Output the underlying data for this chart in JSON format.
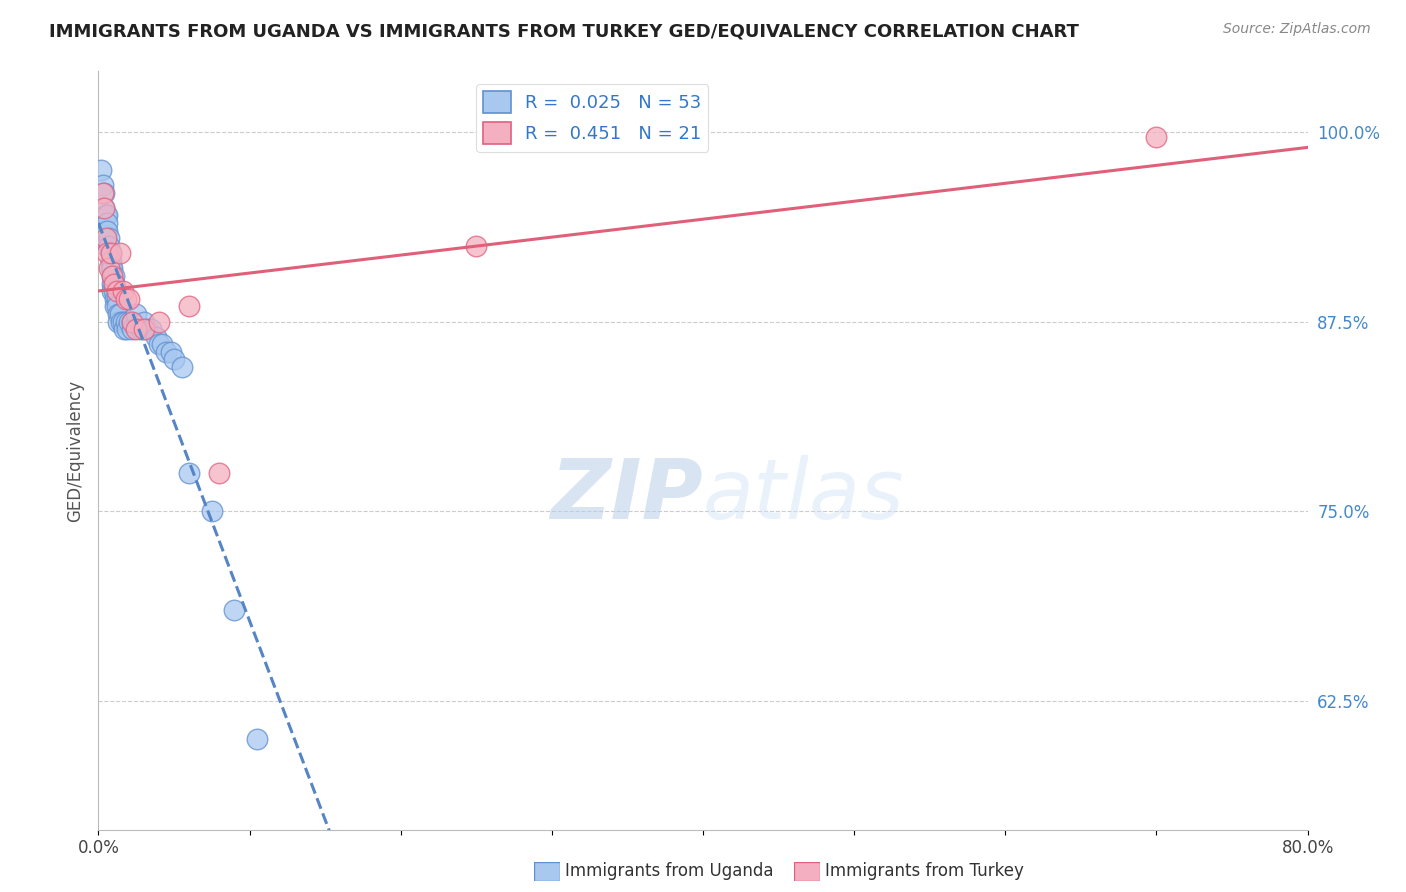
{
  "title": "IMMIGRANTS FROM UGANDA VS IMMIGRANTS FROM TURKEY GED/EQUIVALENCY CORRELATION CHART",
  "source": "Source: ZipAtlas.com",
  "ylabel": "GED/Equivalency",
  "xlim": [
    0.0,
    0.8
  ],
  "ylim": [
    0.54,
    1.04
  ],
  "xticks": [
    0.0,
    0.1,
    0.2,
    0.3,
    0.4,
    0.5,
    0.6,
    0.7,
    0.8
  ],
  "xticklabels": [
    "0.0%",
    "",
    "",
    "",
    "",
    "",
    "",
    "",
    "80.0%"
  ],
  "yticks_right": [
    0.625,
    0.75,
    0.875,
    1.0
  ],
  "yticklabels_right": [
    "62.5%",
    "75.0%",
    "87.5%",
    "100.0%"
  ],
  "color_uganda": "#a8c8f0",
  "color_turkey": "#f4b0c0",
  "color_uganda_edge": "#6090d0",
  "color_turkey_edge": "#e06080",
  "color_uganda_line": "#5585c5",
  "color_turkey_line": "#e0607a",
  "watermark_zip": "ZIP",
  "watermark_atlas": "atlas",
  "uganda_x": [
    0.002,
    0.003,
    0.004,
    0.004,
    0.005,
    0.005,
    0.005,
    0.006,
    0.006,
    0.006,
    0.007,
    0.007,
    0.008,
    0.008,
    0.008,
    0.009,
    0.009,
    0.009,
    0.009,
    0.01,
    0.01,
    0.01,
    0.011,
    0.011,
    0.012,
    0.012,
    0.013,
    0.013,
    0.014,
    0.015,
    0.016,
    0.017,
    0.018,
    0.019,
    0.02,
    0.022,
    0.022,
    0.025,
    0.028,
    0.03,
    0.032,
    0.035,
    0.038,
    0.04,
    0.042,
    0.045,
    0.048,
    0.05,
    0.055,
    0.06,
    0.075,
    0.09,
    0.105
  ],
  "uganda_y": [
    0.975,
    0.965,
    0.96,
    0.95,
    0.945,
    0.935,
    0.925,
    0.945,
    0.94,
    0.935,
    0.93,
    0.925,
    0.92,
    0.915,
    0.91,
    0.91,
    0.905,
    0.9,
    0.895,
    0.905,
    0.9,
    0.895,
    0.89,
    0.885,
    0.89,
    0.885,
    0.88,
    0.875,
    0.88,
    0.875,
    0.875,
    0.87,
    0.875,
    0.87,
    0.875,
    0.875,
    0.87,
    0.88,
    0.87,
    0.875,
    0.87,
    0.87,
    0.865,
    0.86,
    0.86,
    0.855,
    0.855,
    0.85,
    0.845,
    0.775,
    0.75,
    0.685,
    0.6
  ],
  "turkey_x": [
    0.003,
    0.004,
    0.005,
    0.006,
    0.007,
    0.008,
    0.009,
    0.01,
    0.012,
    0.014,
    0.016,
    0.018,
    0.02,
    0.022,
    0.025,
    0.03,
    0.04,
    0.06,
    0.08,
    0.25,
    0.7
  ],
  "turkey_y": [
    0.96,
    0.95,
    0.93,
    0.92,
    0.91,
    0.92,
    0.905,
    0.9,
    0.895,
    0.92,
    0.895,
    0.89,
    0.89,
    0.875,
    0.87,
    0.87,
    0.875,
    0.885,
    0.775,
    0.925,
    0.997
  ]
}
